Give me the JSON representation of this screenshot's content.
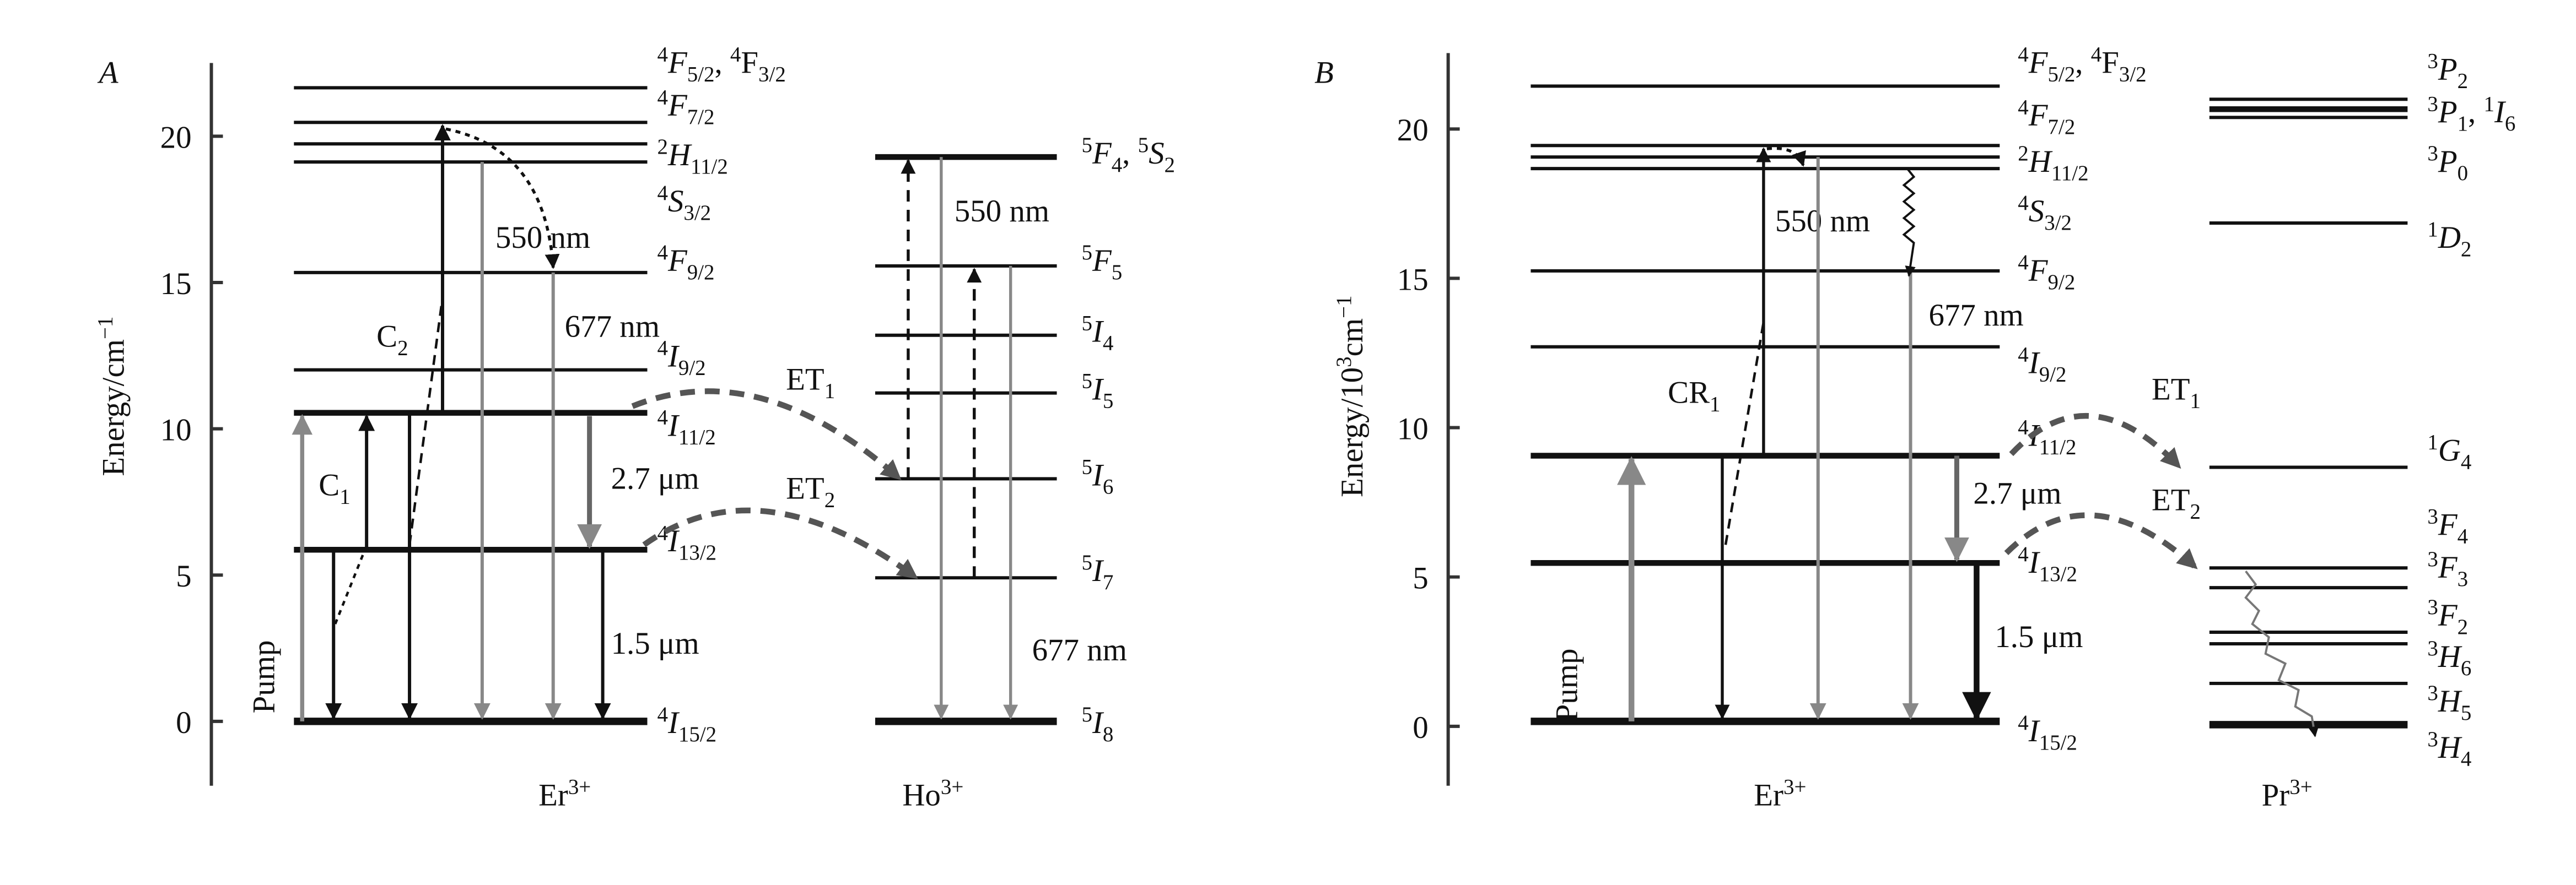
{
  "panels": [
    {
      "letter": "A",
      "y_axis_label": [
        {
          "text": "Energy/cm"
        },
        {
          "text": "−1",
          "pos": "sup"
        }
      ],
      "y_ticks": [
        0,
        5,
        10,
        15,
        20
      ],
      "ion_labels": [
        [
          {
            "text": "Er"
          },
          {
            "text": "3+",
            "pos": "sup"
          }
        ],
        [
          {
            "text": "Ho"
          },
          {
            "text": "3+",
            "pos": "sup"
          }
        ]
      ],
      "level_labels": [
        [
          {
            "text": "4",
            "pos": "sup"
          },
          {
            "text": "F",
            "it": true
          },
          {
            "text": "5/2",
            "pos": "sub"
          },
          {
            "text": ", "
          },
          {
            "text": "4",
            "pos": "sup"
          },
          {
            "text": "F"
          },
          {
            "text": "3/2",
            "pos": "sub"
          }
        ],
        [
          {
            "text": "4",
            "pos": "sup"
          },
          {
            "text": "F",
            "it": true
          },
          {
            "text": "7/2",
            "pos": "sub"
          }
        ],
        [
          {
            "text": "2",
            "pos": "sup"
          },
          {
            "text": "H",
            "it": true
          },
          {
            "text": "11/2",
            "pos": "sub"
          }
        ],
        [
          {
            "text": "4",
            "pos": "sup"
          },
          {
            "text": "S",
            "it": true
          },
          {
            "text": "3/2",
            "pos": "sub"
          }
        ],
        [
          {
            "text": "4",
            "pos": "sup"
          },
          {
            "text": "F",
            "it": true
          },
          {
            "text": "9/2",
            "pos": "sub"
          }
        ],
        [
          {
            "text": "4",
            "pos": "sup"
          },
          {
            "text": "I",
            "it": true
          },
          {
            "text": "9/2",
            "pos": "sub"
          }
        ],
        [
          {
            "text": "4",
            "pos": "sup"
          },
          {
            "text": "I",
            "it": true
          },
          {
            "text": "11/2",
            "pos": "sub"
          }
        ],
        [
          {
            "text": "4",
            "pos": "sup"
          },
          {
            "text": "I",
            "it": true
          },
          {
            "text": "13/2",
            "pos": "sub"
          }
        ],
        [
          {
            "text": "4",
            "pos": "sup"
          },
          {
            "text": "I",
            "it": true
          },
          {
            "text": "15/2",
            "pos": "sub"
          }
        ],
        [
          {
            "text": "5",
            "pos": "sup"
          },
          {
            "text": "F",
            "it": true
          },
          {
            "text": "4",
            "pos": "sub"
          },
          {
            "text": ", "
          },
          {
            "text": "5",
            "pos": "sup"
          },
          {
            "text": "S",
            "it": true
          },
          {
            "text": "2",
            "pos": "sub"
          }
        ],
        [
          {
            "text": "5",
            "pos": "sup"
          },
          {
            "text": "F",
            "it": true
          },
          {
            "text": "5",
            "pos": "sub"
          }
        ],
        [
          {
            "text": "5",
            "pos": "sup"
          },
          {
            "text": "I",
            "it": true
          },
          {
            "text": "4",
            "pos": "sub"
          }
        ],
        [
          {
            "text": "5",
            "pos": "sup"
          },
          {
            "text": "I",
            "it": true
          },
          {
            "text": "5",
            "pos": "sub"
          }
        ],
        [
          {
            "text": "5",
            "pos": "sup"
          },
          {
            "text": "I",
            "it": true
          },
          {
            "text": "6",
            "pos": "sub"
          }
        ],
        [
          {
            "text": "5",
            "pos": "sup"
          },
          {
            "text": "I",
            "it": true
          },
          {
            "text": "7",
            "pos": "sub"
          }
        ],
        [
          {
            "text": "5",
            "pos": "sup"
          },
          {
            "text": "I",
            "it": true
          },
          {
            "text": "8",
            "pos": "sub"
          }
        ]
      ],
      "annotations": [
        [
          {
            "text": "550 nm"
          }
        ],
        [
          {
            "text": "677 nm"
          }
        ],
        [
          {
            "text": "C"
          },
          {
            "text": "2",
            "pos": "sub"
          }
        ],
        [
          {
            "text": "C"
          },
          {
            "text": "1",
            "pos": "sub"
          }
        ],
        [
          {
            "text": "ET"
          },
          {
            "text": "1",
            "pos": "sub"
          }
        ],
        [
          {
            "text": "ET"
          },
          {
            "text": "2",
            "pos": "sub"
          }
        ],
        [
          {
            "text": "2.7  μm"
          }
        ],
        [
          {
            "text": "1.5  μm"
          }
        ],
        [
          {
            "text": "Pump"
          }
        ],
        [
          {
            "text": "550 nm"
          }
        ],
        [
          {
            "text": "677 nm"
          }
        ]
      ]
    },
    {
      "letter": "B",
      "y_axis_label": [
        {
          "text": "Energy/10"
        },
        {
          "text": "3",
          "pos": "sup"
        },
        {
          "text": "cm"
        },
        {
          "text": "−1",
          "pos": "sup"
        }
      ],
      "y_ticks": [
        0,
        5,
        10,
        15,
        20
      ],
      "ion_labels": [
        [
          {
            "text": "Er"
          },
          {
            "text": "3+",
            "pos": "sup"
          }
        ],
        [
          {
            "text": "Pr"
          },
          {
            "text": "3+",
            "pos": "sup"
          }
        ]
      ],
      "level_labels": [
        [
          {
            "text": "4",
            "pos": "sup"
          },
          {
            "text": "F",
            "it": true
          },
          {
            "text": "5/2",
            "pos": "sub"
          },
          {
            "text": ", "
          },
          {
            "text": "4",
            "pos": "sup"
          },
          {
            "text": "F"
          },
          {
            "text": "3/2",
            "pos": "sub"
          }
        ],
        [
          {
            "text": "4",
            "pos": "sup"
          },
          {
            "text": "F",
            "it": true
          },
          {
            "text": "7/2",
            "pos": "sub"
          }
        ],
        [
          {
            "text": "2",
            "pos": "sup"
          },
          {
            "text": "H",
            "it": true
          },
          {
            "text": "11/2",
            "pos": "sub"
          }
        ],
        [
          {
            "text": "4",
            "pos": "sup"
          },
          {
            "text": "S",
            "it": true
          },
          {
            "text": "3/2",
            "pos": "sub"
          }
        ],
        [
          {
            "text": "4",
            "pos": "sup"
          },
          {
            "text": "F",
            "it": true
          },
          {
            "text": "9/2",
            "pos": "sub"
          }
        ],
        [
          {
            "text": "4",
            "pos": "sup"
          },
          {
            "text": "I",
            "it": true
          },
          {
            "text": "9/2",
            "pos": "sub"
          }
        ],
        [
          {
            "text": "4",
            "pos": "sup"
          },
          {
            "text": "I",
            "it": true
          },
          {
            "text": "11/2",
            "pos": "sub"
          }
        ],
        [
          {
            "text": "4",
            "pos": "sup"
          },
          {
            "text": "I",
            "it": true
          },
          {
            "text": "13/2",
            "pos": "sub"
          }
        ],
        [
          {
            "text": "4",
            "pos": "sup"
          },
          {
            "text": "I",
            "it": true
          },
          {
            "text": "15/2",
            "pos": "sub"
          }
        ],
        [
          {
            "text": "3",
            "pos": "sup"
          },
          {
            "text": "P",
            "it": true
          },
          {
            "text": "2",
            "pos": "sub"
          }
        ],
        [
          {
            "text": "3",
            "pos": "sup"
          },
          {
            "text": "P",
            "it": true
          },
          {
            "text": "1",
            "pos": "sub"
          },
          {
            "text": ", "
          },
          {
            "text": "1",
            "pos": "sup"
          },
          {
            "text": "I",
            "it": true
          },
          {
            "text": "6",
            "pos": "sub"
          }
        ],
        [
          {
            "text": "3",
            "pos": "sup"
          },
          {
            "text": "P",
            "it": true
          },
          {
            "text": "0",
            "pos": "sub"
          }
        ],
        [
          {
            "text": "1",
            "pos": "sup"
          },
          {
            "text": "D",
            "it": true
          },
          {
            "text": "2",
            "pos": "sub"
          }
        ],
        [
          {
            "text": "1",
            "pos": "sup"
          },
          {
            "text": "G",
            "it": true
          },
          {
            "text": "4",
            "pos": "sub"
          }
        ],
        [
          {
            "text": "3",
            "pos": "sup"
          },
          {
            "text": "F",
            "it": true
          },
          {
            "text": "4",
            "pos": "sub"
          }
        ],
        [
          {
            "text": "3",
            "pos": "sup"
          },
          {
            "text": "F",
            "it": true
          },
          {
            "text": "3",
            "pos": "sub"
          }
        ],
        [
          {
            "text": "3",
            "pos": "sup"
          },
          {
            "text": "F",
            "it": true
          },
          {
            "text": "2",
            "pos": "sub"
          }
        ],
        [
          {
            "text": "3",
            "pos": "sup"
          },
          {
            "text": "H",
            "it": true
          },
          {
            "text": "6",
            "pos": "sub"
          }
        ],
        [
          {
            "text": "3",
            "pos": "sup"
          },
          {
            "text": "H",
            "it": true
          },
          {
            "text": "5",
            "pos": "sub"
          }
        ],
        [
          {
            "text": "3",
            "pos": "sup"
          },
          {
            "text": "H",
            "it": true
          },
          {
            "text": "4",
            "pos": "sub"
          }
        ]
      ],
      "annotations": [
        [
          {
            "text": "550 nm"
          }
        ],
        [
          {
            "text": "677 nm"
          }
        ],
        [
          {
            "text": "CR"
          },
          {
            "text": "1",
            "pos": "sub"
          }
        ],
        [
          {
            "text": "ET"
          },
          {
            "text": "1",
            "pos": "sub"
          }
        ],
        [
          {
            "text": "ET"
          },
          {
            "text": "2",
            "pos": "sub"
          }
        ],
        [
          {
            "text": "2.7  μm"
          }
        ],
        [
          {
            "text": "1.5  μm"
          }
        ],
        [
          {
            "text": "Pump"
          }
        ]
      ]
    }
  ]
}
